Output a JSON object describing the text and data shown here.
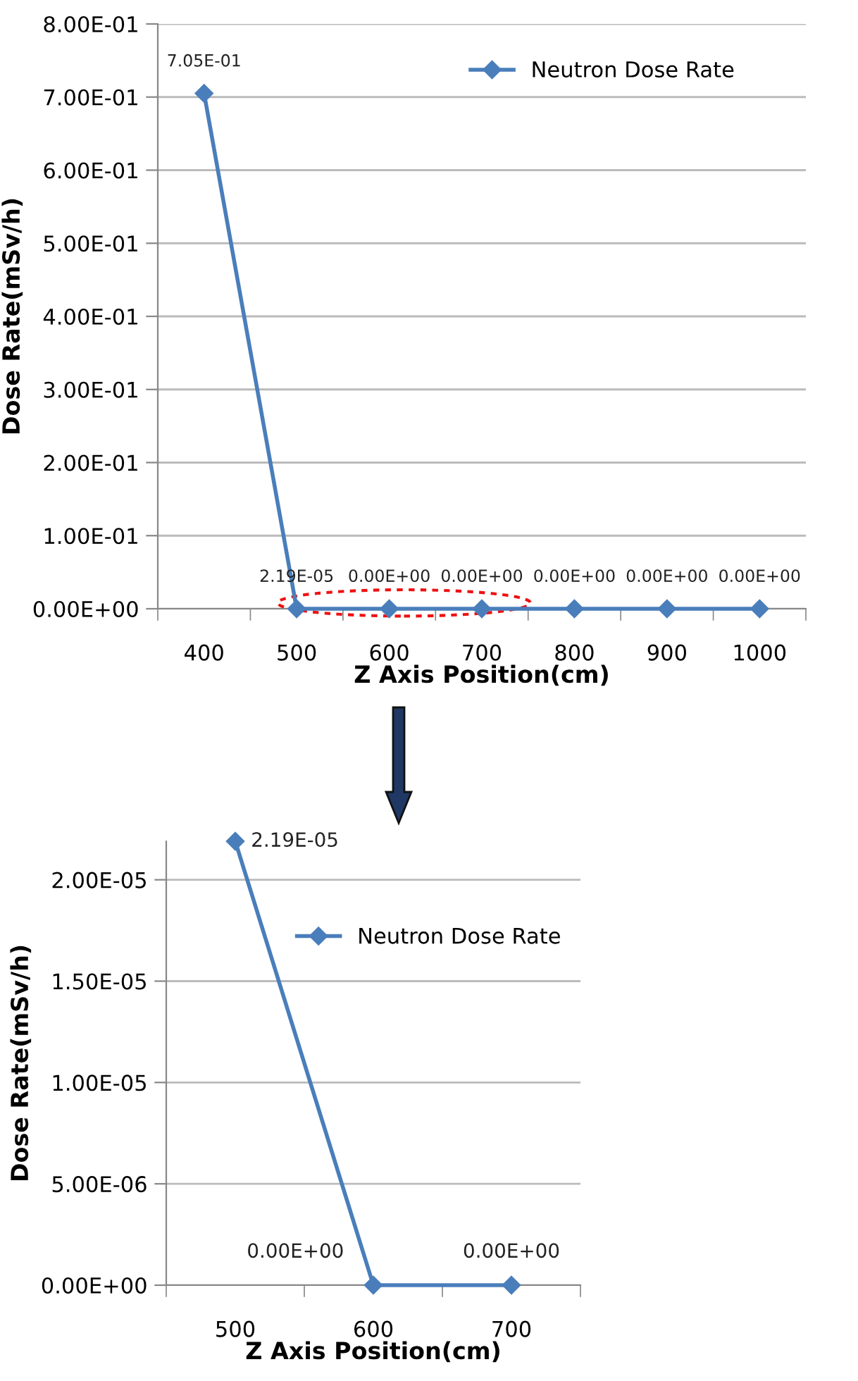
{
  "chart_data": [
    {
      "type": "line",
      "categories": [
        "400",
        "500",
        "600",
        "700",
        "800",
        "900",
        "1000"
      ],
      "xlabel": "Z Axis Position(cm)",
      "ylabel": "Dose Rate(mSv/h)",
      "series": [
        {
          "name": "Neutron Dose Rate",
          "color": "#4a7ebb",
          "values": [
            0.705,
            2.19e-05,
            0,
            0,
            0,
            0,
            0
          ],
          "value_labels": [
            "7.05E-01",
            "2.19E-05",
            "0.00E+00",
            "0.00E+00",
            "0.00E+00",
            "0.00E+00",
            "0.00E+00"
          ]
        }
      ],
      "ylim": [
        0,
        0.8
      ],
      "yticks": [
        {
          "value": 0,
          "label": "0.00E+00"
        },
        {
          "value": 0.1,
          "label": "1.00E-01"
        },
        {
          "value": 0.2,
          "label": "2.00E-01"
        },
        {
          "value": 0.3,
          "label": "3.00E-01"
        },
        {
          "value": 0.4,
          "label": "4.00E-01"
        },
        {
          "value": 0.5,
          "label": "5.00E-01"
        },
        {
          "value": 0.6,
          "label": "6.00E-01"
        },
        {
          "value": 0.7,
          "label": "7.00E-01"
        },
        {
          "value": 0.8,
          "label": "8.00E-01"
        }
      ],
      "grid": "y",
      "legend": "top right",
      "marker": "diamond",
      "line_style": "solid"
    },
    {
      "type": "line",
      "categories": [
        "500",
        "600",
        "700"
      ],
      "xlabel": "Z Axis Position(cm)",
      "ylabel": "Dose Rate(mSv/h)",
      "series": [
        {
          "name": "Neutron Dose Rate",
          "color": "#4a7ebb",
          "values": [
            2.19e-05,
            0,
            0
          ],
          "value_labels": [
            "2.19E-05",
            "0.00E+00",
            "0.00E+00"
          ]
        }
      ],
      "ylim": [
        0,
        2.19e-05
      ],
      "yticks": [
        {
          "value": 0,
          "label": "0.00E+00"
        },
        {
          "value": 5e-06,
          "label": "5.00E-06"
        },
        {
          "value": 1e-05,
          "label": "1.00E-05"
        },
        {
          "value": 1.5e-05,
          "label": "1.50E-05"
        },
        {
          "value": 2e-05,
          "label": "2.00E-05"
        }
      ],
      "grid": "y",
      "legend": "top right",
      "marker": "diamond",
      "line_style": "solid"
    }
  ]
}
